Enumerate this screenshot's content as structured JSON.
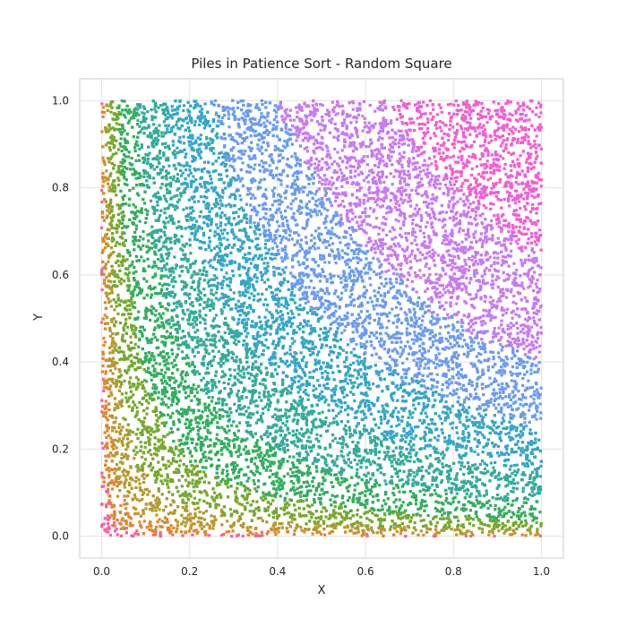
{
  "chart_data": {
    "type": "scatter",
    "title": "Piles in Patience Sort - Random Square",
    "xlabel": "X",
    "ylabel": "Y",
    "xlim": [
      -0.05,
      1.05
    ],
    "ylim": [
      -0.05,
      1.05
    ],
    "xticks": [
      "0.0",
      "0.2",
      "0.4",
      "0.6",
      "0.8",
      "1.0"
    ],
    "yticks": [
      "0.0",
      "0.2",
      "0.4",
      "0.6",
      "0.8",
      "1.0"
    ],
    "grid": true,
    "style": "whitegrid",
    "series": [
      {
        "color": "#f564a0",
        "bands": [
          0.0,
          0.03
        ]
      },
      {
        "color": "#e0882d",
        "bands": [
          0.03,
          0.07
        ]
      },
      {
        "color": "#b59a2f",
        "bands": [
          0.07,
          0.12
        ]
      },
      {
        "color": "#76a92e",
        "bands": [
          0.12,
          0.19
        ]
      },
      {
        "color": "#33ae5f",
        "bands": [
          0.19,
          0.28
        ]
      },
      {
        "color": "#35ab9a",
        "bands": [
          0.28,
          0.38
        ]
      },
      {
        "color": "#36a6c7",
        "bands": [
          0.38,
          0.5
        ]
      },
      {
        "color": "#6b9cf2",
        "bands": [
          0.5,
          0.63
        ]
      },
      {
        "color": "#c77bf2",
        "bands": [
          0.63,
          0.8
        ]
      },
      {
        "color": "#f25fd2",
        "bands": [
          0.8,
          1.0
        ]
      }
    ],
    "points_per_pile": 1600,
    "domain": {
      "x": [
        0,
        1
      ],
      "y": [
        0,
        1
      ]
    }
  }
}
